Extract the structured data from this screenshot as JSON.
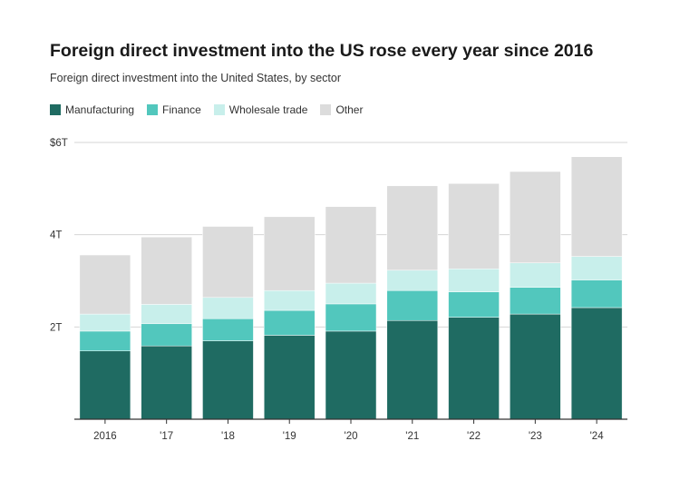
{
  "chart_data": {
    "type": "bar",
    "stacked": true,
    "title": "Foreign direct investment into the US rose every year since 2016",
    "subtitle": "Foreign direct investment into the United States, by sector",
    "categories": [
      "2016",
      "'17",
      "'18",
      "'19",
      "'20",
      "'21",
      "'22",
      "'23",
      "'24"
    ],
    "series": [
      {
        "name": "Manufacturing",
        "color": "#1f6b62",
        "values": [
          1.48,
          1.59,
          1.7,
          1.82,
          1.91,
          2.14,
          2.21,
          2.28,
          2.42
        ]
      },
      {
        "name": "Finance",
        "color": "#52c7bd",
        "values": [
          0.43,
          0.48,
          0.48,
          0.54,
          0.59,
          0.65,
          0.55,
          0.58,
          0.6
        ]
      },
      {
        "name": "Wholesale trade",
        "color": "#c8efeb",
        "values": [
          0.37,
          0.42,
          0.46,
          0.43,
          0.45,
          0.44,
          0.5,
          0.53,
          0.51
        ]
      },
      {
        "name": "Other",
        "color": "#dcdcdc",
        "values": [
          1.28,
          1.46,
          1.54,
          1.6,
          1.66,
          1.83,
          1.85,
          1.98,
          2.16
        ]
      }
    ],
    "ylim": [
      0,
      6
    ],
    "yticks": [
      {
        "value": 2,
        "label": "2T"
      },
      {
        "value": 4,
        "label": "4T"
      },
      {
        "value": 6,
        "label": "$6T"
      }
    ],
    "grid": true,
    "legend": "top-left"
  }
}
